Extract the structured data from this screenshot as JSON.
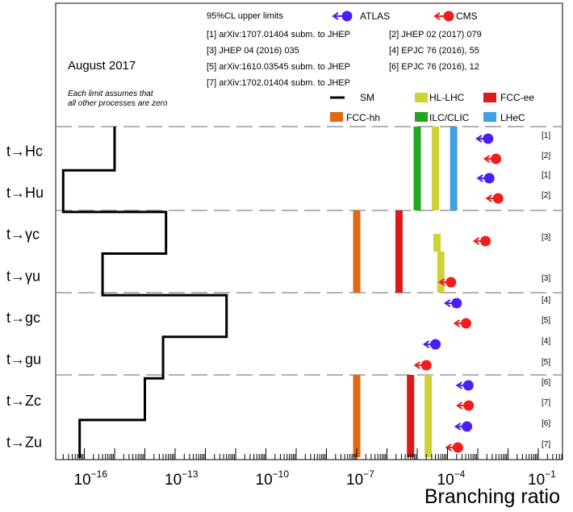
{
  "chart_data": {
    "type": "bar",
    "orientation": "horizontal",
    "xscale": "log",
    "xlim": [
      1e-18,
      0.1
    ],
    "xlabel": "Branching ratio",
    "x_tick_labels": [
      "10^{-16}",
      "10^{-13}",
      "10^{-10}",
      "10^{-7}",
      "10^{-4}",
      "10^{-1}"
    ],
    "date_label": "August 2017",
    "note": "Each limit assumes that all other processes are zero",
    "header": "95%CL upper limits",
    "references": [
      "[1] arXiv:1707.01404 subm. to JHEP",
      "[2] JHEP 02 (2017) 079",
      "[3] JHEP 04 (2016) 035",
      "[4] EPJC 76 (2016), 55",
      "[5] arXiv:1610.03545 subm. to JHEP",
      "[6] EPJC 76 (2016), 12",
      "[7] arXiv:1702.01404 subm. to JHEP"
    ],
    "legend": [
      {
        "key": "ATLAS",
        "label": "ATLAS",
        "color": "#4b1ff2",
        "style": "arrow-dot"
      },
      {
        "key": "CMS",
        "label": "CMS",
        "color": "#f21e1e",
        "style": "arrow-dot"
      },
      {
        "key": "SM",
        "label": "SM",
        "color": "#000000",
        "style": "line"
      },
      {
        "key": "HL-LHC",
        "label": "HL-LHC",
        "color": "#cfd235",
        "style": "box"
      },
      {
        "key": "FCC-ee",
        "label": "FCC-ee",
        "color": "#dd1a1a",
        "style": "box"
      },
      {
        "key": "FCC-hh",
        "label": "FCC-hh",
        "color": "#e06a14",
        "style": "box"
      },
      {
        "key": "ILC/CLIC",
        "label": "ILC/CLIC",
        "color": "#20a61f",
        "style": "box"
      },
      {
        "key": "LHeC",
        "label": "LHeC",
        "color": "#3ea0e6",
        "style": "box"
      }
    ],
    "processes": [
      {
        "label": "t→Hc",
        "sm": 1e-15
      },
      {
        "label": "t→Hu",
        "sm": 2e-17
      },
      {
        "label": "t→γc",
        "sm": 5e-14
      },
      {
        "label": "t→γu",
        "sm": 4e-16
      },
      {
        "label": "t→gc",
        "sm": 5e-12
      },
      {
        "label": "t→gu",
        "sm": 4e-14
      },
      {
        "label": "t→Zc",
        "sm": 1e-14
      },
      {
        "label": "t→Zu",
        "sm": 7e-17
      }
    ],
    "limits": [
      {
        "process": "t→Hc",
        "experiment": "ATLAS",
        "value": 0.0022,
        "ref": "[1]"
      },
      {
        "process": "t→Hc",
        "experiment": "CMS",
        "value": 0.004,
        "ref": "[2]"
      },
      {
        "process": "t→Hu",
        "experiment": "ATLAS",
        "value": 0.0024,
        "ref": "[1]"
      },
      {
        "process": "t→Hu",
        "experiment": "CMS",
        "value": 0.0047,
        "ref": "[2]"
      },
      {
        "process": "t→γc",
        "experiment": "CMS",
        "value": 0.0018,
        "ref": "[3]"
      },
      {
        "process": "t→γu",
        "experiment": "CMS",
        "value": 0.00013,
        "ref": "[3]"
      },
      {
        "process": "t→gc",
        "experiment": "ATLAS",
        "value": 0.0002,
        "ref": "[4]"
      },
      {
        "process": "t→gc",
        "experiment": "CMS",
        "value": 0.00041,
        "ref": "[5]"
      },
      {
        "process": "t→gu",
        "experiment": "ATLAS",
        "value": 4e-05,
        "ref": "[4]"
      },
      {
        "process": "t→gu",
        "experiment": "CMS",
        "value": 2e-05,
        "ref": "[5]"
      },
      {
        "process": "t→Zc",
        "experiment": "ATLAS",
        "value": 0.00049,
        "ref": "[6]"
      },
      {
        "process": "t→Zc",
        "experiment": "CMS",
        "value": 0.0005,
        "ref": "[7]"
      },
      {
        "process": "t→Zu",
        "experiment": "ATLAS",
        "value": 0.00044,
        "ref": "[6]"
      },
      {
        "process": "t→Zu",
        "experiment": "CMS",
        "value": 0.00022,
        "ref": "[7]"
      }
    ],
    "projections": [
      {
        "group": "Higgs",
        "facility": "ILC/CLIC",
        "value": 1e-05
      },
      {
        "group": "Higgs",
        "facility": "HL-LHC",
        "value": 4e-05
      },
      {
        "group": "Higgs",
        "facility": "LHeC",
        "value": 0.00016
      },
      {
        "group": "photon",
        "facility": "FCC-hh",
        "value": 1e-07
      },
      {
        "group": "photon",
        "facility": "FCC-ee",
        "value": 2.5e-06
      },
      {
        "group": "photon",
        "facility": "HL-LHC",
        "value": 4.5e-05
      },
      {
        "group": "photon",
        "facility": "HL-LHC",
        "value": 6e-05
      },
      {
        "group": "Z",
        "facility": "FCC-hh",
        "value": 1e-07
      },
      {
        "group": "Z",
        "facility": "FCC-ee",
        "value": 6e-06
      },
      {
        "group": "Z",
        "facility": "HL-LHC",
        "value": 2.3e-05
      }
    ]
  }
}
